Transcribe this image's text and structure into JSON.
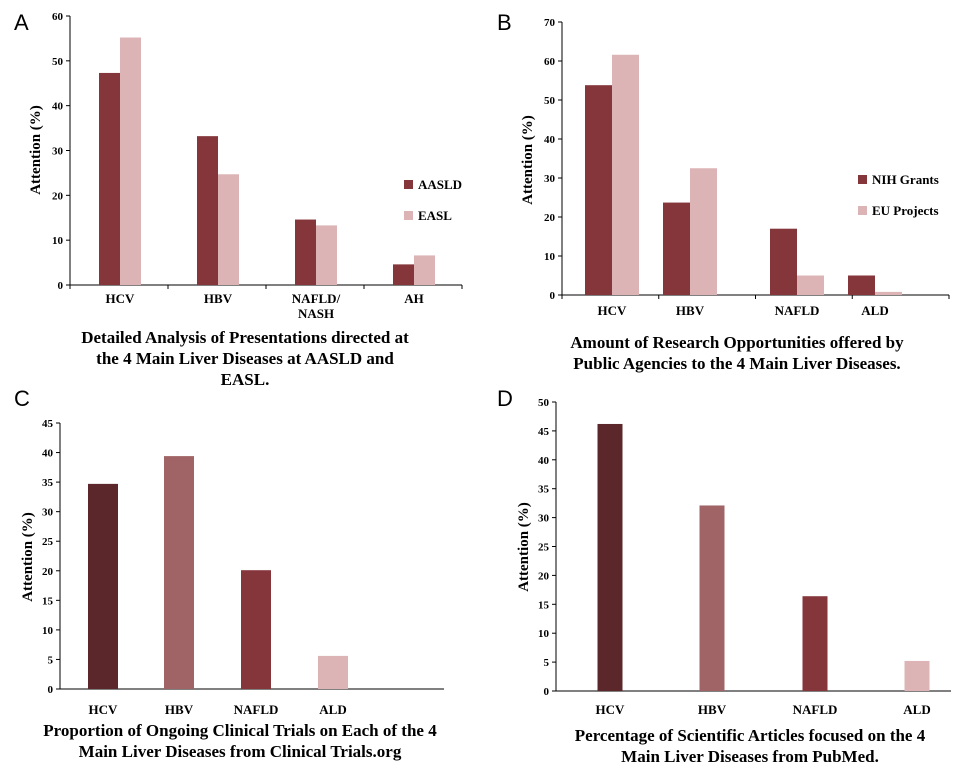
{
  "panels": [
    {
      "letter": "A"
    },
    {
      "letter": "B"
    },
    {
      "letter": "C"
    },
    {
      "letter": "D"
    }
  ],
  "chart_data": [
    {
      "type": "bar",
      "categories": [
        "HCV",
        "HBV",
        "NAFLD/\nNASH",
        "AH"
      ],
      "series": [
        {
          "name": "AASLD",
          "values": [
            47.3,
            33.2,
            14.6,
            4.6
          ],
          "color": "#84363b"
        },
        {
          "name": "EASL",
          "values": [
            55.2,
            24.7,
            13.3,
            6.6
          ],
          "color": "#dcb4b6"
        }
      ],
      "title": "Detailed Analysis of Presentations directed at\nthe 4 Main Liver Diseases  at AASLD and\nEASL.",
      "xlabel": "",
      "ylabel": "Attention (%)",
      "ylim": [
        0,
        60
      ],
      "yticks": [
        0,
        10,
        20,
        30,
        40,
        50,
        60
      ],
      "grid": false,
      "legend_position": "right"
    },
    {
      "type": "bar",
      "categories": [
        "HCV",
        "HBV",
        "NAFLD",
        "ALD"
      ],
      "series": [
        {
          "name": "NIH Grants",
          "values": [
            53.8,
            23.7,
            17.0,
            5.0
          ],
          "color": "#84363b"
        },
        {
          "name": "EU Projects",
          "values": [
            61.6,
            32.5,
            5.0,
            0.8
          ],
          "color": "#dcb4b6"
        }
      ],
      "title": "Amount of Research Opportunities offered by\nPublic Agencies to the 4 Main Liver Diseases.",
      "xlabel": "",
      "ylabel": "Attention (%)",
      "ylim": [
        0,
        70
      ],
      "yticks": [
        0,
        10,
        20,
        30,
        40,
        50,
        60,
        70
      ],
      "grid": false,
      "legend_position": "right"
    },
    {
      "type": "bar",
      "categories": [
        "HCV",
        "HBV",
        "NAFLD",
        "ALD"
      ],
      "values": [
        34.7,
        39.4,
        20.1,
        5.6
      ],
      "colors": [
        "#5c272b",
        "#a06466",
        "#84363b",
        "#dcb4b6"
      ],
      "title": "Proportion of Ongoing Clinical Trials on Each of the 4\nMain Liver Diseases from Clinical Trials.org",
      "xlabel": "",
      "ylabel": "Attention (%)",
      "ylim": [
        0,
        45
      ],
      "yticks": [
        0,
        5,
        10,
        15,
        20,
        25,
        30,
        35,
        40,
        45
      ],
      "grid": false
    },
    {
      "type": "bar",
      "categories": [
        "HCV",
        "HBV",
        "NAFLD",
        "ALD"
      ],
      "values": [
        46.2,
        32.1,
        16.4,
        5.2
      ],
      "colors": [
        "#5c272b",
        "#a06466",
        "#84363b",
        "#dcb4b6"
      ],
      "title": "Percentage of Scientific Articles focused on the 4\nMain Liver Diseases from PubMed.",
      "xlabel": "",
      "ylabel": "Attention (%)",
      "ylim": [
        0,
        50
      ],
      "yticks": [
        0,
        5,
        10,
        15,
        20,
        25,
        30,
        35,
        40,
        45,
        50
      ],
      "grid": false
    }
  ]
}
